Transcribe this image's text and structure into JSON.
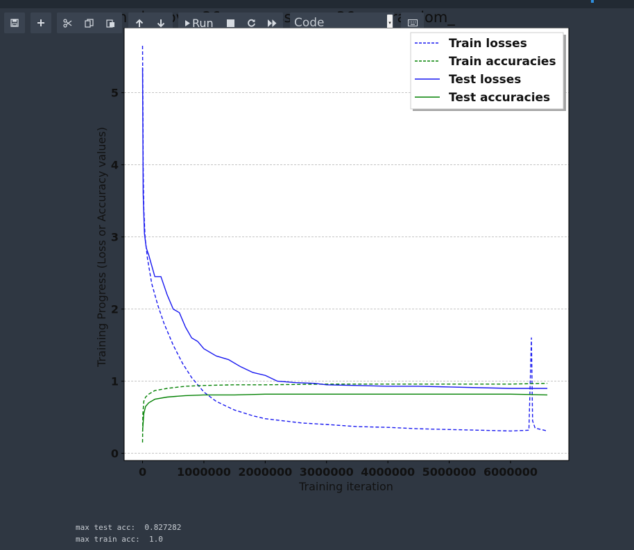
{
  "notebook": {
    "cell_heading": "n...ic...ov...:36 ...o...ress_num:36 sparrandom_",
    "toolbar": {
      "run_label": "Run",
      "cell_type_value": "Code"
    }
  },
  "output": {
    "max_test_acc_line": "max test acc:  0.827282",
    "max_train_acc_line": "max train acc:  1.0"
  },
  "colors": {
    "background": "#2f3742",
    "toolbar_button": "#3a4350",
    "loss": "#1515f0",
    "accuracy": "#008000"
  },
  "chart_data": {
    "type": "line",
    "xlabel": "Training iteration",
    "ylabel": "Training Progress (Loss or Accuracy values)",
    "xlim": [
      -300000,
      6950000
    ],
    "ylim": [
      -0.1,
      5.9
    ],
    "xticks": [
      0,
      1000000,
      2000000,
      3000000,
      4000000,
      5000000,
      6000000
    ],
    "xtick_labels": [
      "0",
      "1000000",
      "2000000",
      "3000000",
      "4000000",
      "5000000",
      "6000000"
    ],
    "yticks": [
      0,
      1,
      2,
      3,
      4,
      5
    ],
    "ytick_labels": [
      "0",
      "1",
      "2",
      "3",
      "4",
      "5"
    ],
    "grid": "horizontal dashed",
    "legend_position": "top-right",
    "series": [
      {
        "name": "Train losses",
        "color": "#1515f0",
        "style": "dashed",
        "x": [
          0,
          5000,
          10000,
          20000,
          40000,
          80000,
          150000,
          250000,
          350000,
          500000,
          650000,
          800000,
          1000000,
          1200000,
          1500000,
          1800000,
          2000000,
          2300000,
          2600000,
          3000000,
          3500000,
          4000000,
          4500000,
          5000000,
          5500000,
          6000000,
          6300000,
          6340000,
          6360000,
          6400000,
          6600000
        ],
        "y": [
          5.65,
          4.9,
          4.0,
          3.4,
          3.0,
          2.7,
          2.35,
          2.05,
          1.8,
          1.5,
          1.25,
          1.05,
          0.85,
          0.72,
          0.6,
          0.52,
          0.48,
          0.45,
          0.42,
          0.4,
          0.37,
          0.36,
          0.34,
          0.33,
          0.32,
          0.31,
          0.32,
          1.6,
          0.45,
          0.35,
          0.31
        ]
      },
      {
        "name": "Train accuracies",
        "color": "#008000",
        "style": "dashed",
        "x": [
          0,
          5000,
          20000,
          50000,
          100000,
          200000,
          400000,
          700000,
          1000000,
          1500000,
          2000000,
          3000000,
          4000000,
          5000000,
          6000000,
          6600000
        ],
        "y": [
          0.15,
          0.55,
          0.72,
          0.78,
          0.82,
          0.87,
          0.9,
          0.93,
          0.94,
          0.95,
          0.95,
          0.96,
          0.96,
          0.96,
          0.96,
          0.97
        ]
      },
      {
        "name": "Test losses",
        "color": "#1515f0",
        "style": "solid",
        "x": [
          0,
          10000,
          30000,
          60000,
          100000,
          200000,
          300000,
          400000,
          500000,
          600000,
          700000,
          800000,
          900000,
          1000000,
          1200000,
          1400000,
          1600000,
          1800000,
          2000000,
          2200000,
          2500000,
          2800000,
          3000000,
          3500000,
          4000000,
          4500000,
          5000000,
          5500000,
          6000000,
          6300000,
          6600000
        ],
        "y": [
          5.35,
          3.6,
          3.05,
          2.85,
          2.75,
          2.45,
          2.45,
          2.2,
          2.0,
          1.95,
          1.75,
          1.6,
          1.55,
          1.45,
          1.35,
          1.3,
          1.2,
          1.12,
          1.08,
          1.0,
          0.98,
          0.97,
          0.95,
          0.94,
          0.93,
          0.93,
          0.92,
          0.91,
          0.9,
          0.9,
          0.9
        ]
      },
      {
        "name": "Test accuracies",
        "color": "#008000",
        "style": "solid",
        "x": [
          0,
          20000,
          50000,
          100000,
          200000,
          400000,
          700000,
          1000000,
          1500000,
          2000000,
          3000000,
          4000000,
          5000000,
          6000000,
          6600000
        ],
        "y": [
          0.3,
          0.55,
          0.65,
          0.7,
          0.75,
          0.78,
          0.8,
          0.81,
          0.81,
          0.82,
          0.82,
          0.82,
          0.82,
          0.82,
          0.81
        ]
      }
    ]
  }
}
